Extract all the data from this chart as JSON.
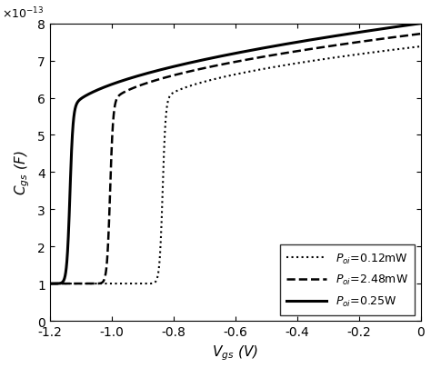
{
  "xlabel": "$V_{gs}$ (V)",
  "ylabel": "$C_{gs}$ (F)",
  "xlim": [
    -1.2,
    0.0
  ],
  "ylim": [
    0,
    8e-13
  ],
  "xticks": [
    -1.2,
    -1.0,
    -0.8,
    -0.6,
    -0.4,
    -0.2,
    0.0
  ],
  "yticks": [
    0,
    1e-13,
    2e-13,
    3e-13,
    4e-13,
    5e-13,
    6e-13,
    7e-13,
    8e-13
  ],
  "curves": [
    {
      "label": "$P_{oi}$=0.12mW",
      "ls": "dotted",
      "lw": 1.5,
      "vt": -0.835,
      "C_flat": 1e-13,
      "C_at_vt": 5.88e-13,
      "C_at_0": 7.38e-13,
      "power": 0.55,
      "steepness": 200
    },
    {
      "label": "$P_{oi}$=2.48mW",
      "ls": "dashed",
      "lw": 1.8,
      "vt": -1.005,
      "C_flat": 1e-13,
      "C_at_vt": 5.8e-13,
      "C_at_0": 7.72e-13,
      "power": 0.55,
      "steepness": 200
    },
    {
      "label": "$P_{oi}$=0.25W",
      "ls": "solid",
      "lw": 2.2,
      "vt": -1.135,
      "C_flat": 1e-13,
      "C_at_vt": 5.62e-13,
      "C_at_0": 8e-13,
      "power": 0.55,
      "steepness": 200
    }
  ],
  "background_color": "#ffffff",
  "legend_fontsize": 9,
  "axis_fontsize": 11,
  "tick_fontsize": 10
}
